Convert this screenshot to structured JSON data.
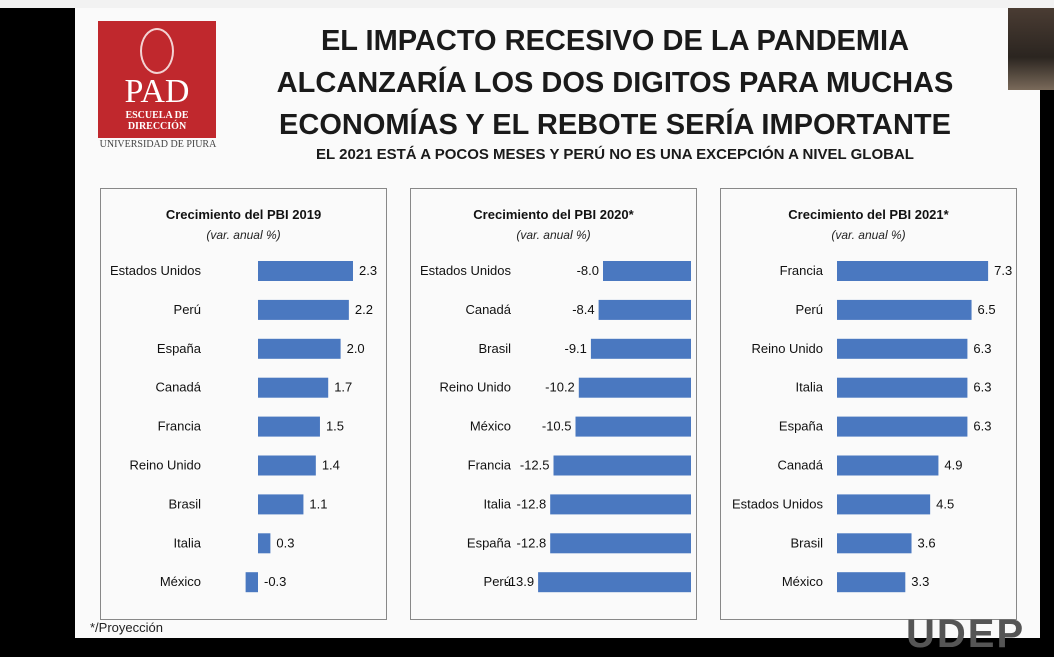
{
  "slide": {
    "title_lines": [
      "EL IMPACTO RECESIVO DE LA PANDEMIA",
      "ALCANZARÍA LOS DOS DIGITOS PARA MUCHAS",
      "ECONOMÍAS Y EL REBOTE SERÍA IMPORTANTE"
    ],
    "subtitle": "EL 2021 ESTÁ A POCOS MESES Y PERÚ NO ES UNA EXCEPCIÓN A NIVEL GLOBAL",
    "logo": {
      "pad": "PAD",
      "school": "ESCUELA DE DIRECCIÓN",
      "university": "UNIVERSIDAD DE PIURA"
    },
    "footnote": "*/Proyección",
    "corner_brand": "UDEP",
    "bar_color": "#4a78c0"
  },
  "chart_data": [
    {
      "type": "bar",
      "orientation": "horizontal",
      "title": "Crecimiento del PBI 2019",
      "subtitle": "(var. anual %)",
      "categories": [
        "Estados Unidos",
        "Perú",
        "España",
        "Canadá",
        "Francia",
        "Reino Unido",
        "Brasil",
        "Italia",
        "México"
      ],
      "values": [
        2.3,
        2.2,
        2.0,
        1.7,
        1.5,
        1.4,
        1.1,
        0.3,
        -0.3
      ],
      "labels": [
        "2.3",
        "2.2",
        "2.0",
        "1.7",
        "1.5",
        "1.4",
        "1.1",
        "0.3",
        "-0.3"
      ]
    },
    {
      "type": "bar",
      "orientation": "horizontal",
      "title": "Crecimiento del PBI 2020*",
      "subtitle": "(var. anual %)",
      "categories": [
        "Estados Unidos",
        "Canadá",
        "Brasil",
        "Reino Unido",
        "México",
        "Francia",
        "Italia",
        "España",
        "Perú"
      ],
      "values": [
        -8.0,
        -8.4,
        -9.1,
        -10.2,
        -10.5,
        -12.5,
        -12.8,
        -12.8,
        -13.9
      ],
      "labels": [
        "-8.0",
        "-8.4",
        "-9.1",
        "-10.2",
        "-10.5",
        "-12.5",
        "-12.8",
        "-12.8",
        "-13.9"
      ]
    },
    {
      "type": "bar",
      "orientation": "horizontal",
      "title": "Crecimiento del PBI 2021*",
      "subtitle": "(var. anual %)",
      "categories": [
        "Francia",
        "Perú",
        "Reino Unido",
        "Italia",
        "España",
        "Canadá",
        "Estados Unidos",
        "Brasil",
        "México"
      ],
      "values": [
        7.3,
        6.5,
        6.3,
        6.3,
        6.3,
        4.9,
        4.5,
        3.6,
        3.3
      ],
      "labels": [
        "7.3",
        "6.5",
        "6.3",
        "6.3",
        "6.3",
        "4.9",
        "4.5",
        "3.6",
        "3.3"
      ]
    }
  ]
}
